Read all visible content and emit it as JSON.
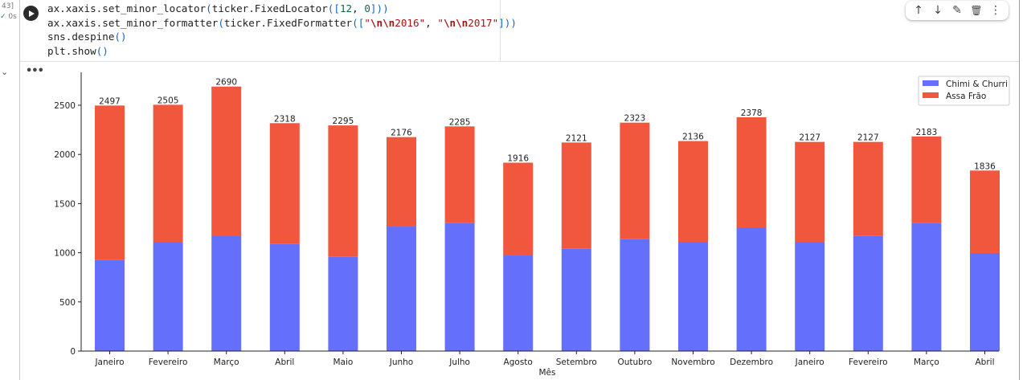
{
  "cell": {
    "exec_count": "43]",
    "exec_time": "0s",
    "code_lines": [
      [
        [
          "ax.xaxis.set_minor_locator",
          "t"
        ],
        [
          "(",
          "p"
        ],
        [
          "ticker.FixedLocator",
          "t"
        ],
        [
          "([",
          "p"
        ],
        [
          "12",
          "n"
        ],
        [
          ", ",
          "t"
        ],
        [
          "0",
          "n"
        ],
        [
          "]))",
          "p"
        ]
      ],
      [
        [
          "ax.xaxis.set_minor_formatter",
          "t"
        ],
        [
          "(",
          "p"
        ],
        [
          "ticker.FixedFormatter",
          "t"
        ],
        [
          "([",
          "p"
        ],
        [
          "\"",
          "s"
        ],
        [
          "\\n\\n",
          "e"
        ],
        [
          "2016\"",
          "s"
        ],
        [
          ", ",
          "t"
        ],
        [
          "\"",
          "s"
        ],
        [
          "\\n\\n",
          "e"
        ],
        [
          "2017\"",
          "s"
        ],
        [
          "]))",
          "p"
        ]
      ],
      [
        [
          "sns.despine",
          "t"
        ],
        [
          "()",
          "p"
        ]
      ],
      [
        [
          "plt.show",
          "t"
        ],
        [
          "()",
          "p"
        ]
      ]
    ]
  },
  "toolbar": {
    "up": "↑",
    "down": "↓",
    "edit": "✎",
    "delete": "🗑",
    "more": "⋮"
  },
  "output": {
    "collapse": "⌄",
    "menu": "•••"
  },
  "chart_data": {
    "type": "bar",
    "stacked": true,
    "categories": [
      "Janeiro",
      "Fevereiro",
      "Março",
      "Abril",
      "Maio",
      "Junho",
      "Julho",
      "Agosto",
      "Setembro",
      "Outubro",
      "Novembro",
      "Dezembro",
      "Janeiro",
      "Fevereiro",
      "Março",
      "Abril"
    ],
    "series": [
      {
        "name": "Chimi & Churri",
        "color": "#6470fb",
        "values": [
          926,
          1111,
          1176,
          1089,
          958,
          1266,
          1302,
          972,
          1040,
          1138,
          1111,
          1258,
          1111,
          1171,
          1302,
          997
        ]
      },
      {
        "name": "Assa Frão",
        "color": "#f0573d",
        "values": [
          1571,
          1394,
          1514,
          1229,
          1337,
          910,
          983,
          944,
          1081,
          1185,
          1025,
          1120,
          1016,
          956,
          881,
          839
        ]
      }
    ],
    "totals": [
      2497,
      2505,
      2690,
      2318,
      2295,
      2176,
      2285,
      1916,
      2121,
      2323,
      2136,
      2378,
      2127,
      2127,
      2183,
      1836
    ],
    "xlabel": "Mês",
    "ylabel": "",
    "ylim": [
      0,
      2800
    ],
    "yticks": [
      0,
      500,
      1000,
      1500,
      2000,
      2500
    ],
    "grid": false,
    "legend": "top-right"
  }
}
